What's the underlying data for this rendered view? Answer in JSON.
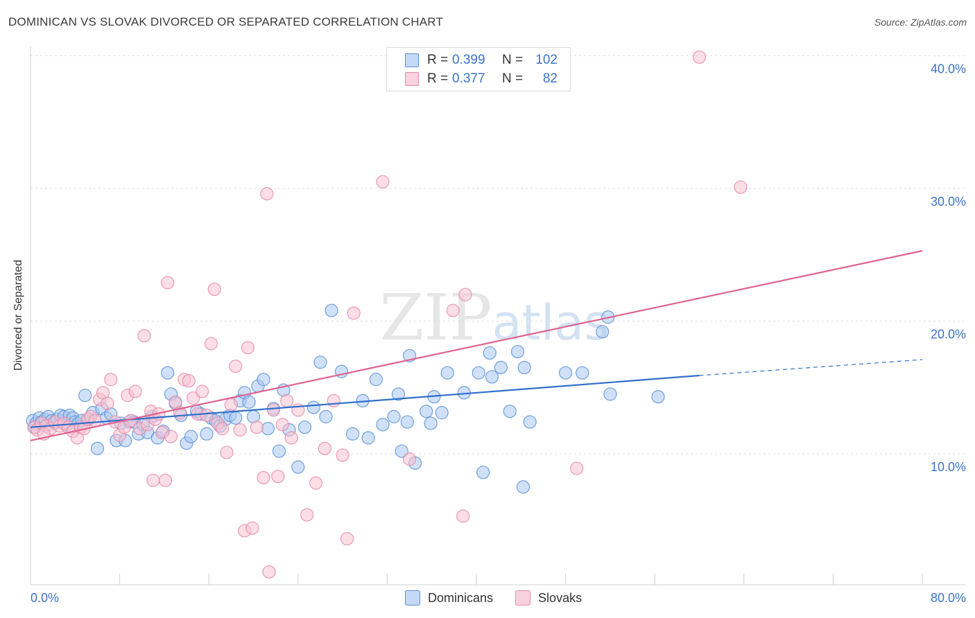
{
  "header": {
    "title": "DOMINICAN VS SLOVAK DIVORCED OR SEPARATED CORRELATION CHART",
    "source": "Source: ZipAtlas.com"
  },
  "watermark": "ZIPatlas",
  "legend_top": {
    "rows": [
      {
        "r_label": "R =",
        "r_value": "0.399",
        "n_label": "N =",
        "n_value": "102"
      },
      {
        "r_label": "R =",
        "r_value": "0.377",
        "n_label": "N =",
        "n_value": "82"
      }
    ]
  },
  "legend_bottom": {
    "items": [
      "Dominicans",
      "Slovaks"
    ]
  },
  "colors": {
    "dominicans_fill": "#a9c8f0",
    "dominicans_stroke": "#5b8fd6",
    "dominicans_line": "#2f6fcc",
    "slovaks_fill": "#f7c2d2",
    "slovaks_stroke": "#e589a8",
    "slovaks_line": "#e0628e",
    "tick_label": "#3b73c9"
  },
  "chart_data": {
    "type": "scatter",
    "title": "DOMINICAN VS SLOVAK DIVORCED OR SEPARATED CORRELATION CHART",
    "xlabel": "",
    "ylabel": "Divorced or Separated",
    "xlim": [
      0,
      80
    ],
    "ylim": [
      0,
      40
    ],
    "x_tick_labels": [
      "0.0%",
      "80.0%"
    ],
    "y_ticks": [
      10,
      20,
      30,
      40
    ],
    "y_tick_labels": [
      "10.0%",
      "20.0%",
      "30.0%",
      "40.0%"
    ],
    "grid": true,
    "legend_position": "top-center",
    "series": [
      {
        "name": "Dominicans",
        "r": 0.399,
        "n": 102,
        "trend": {
          "x0": 0,
          "y0": 12.0,
          "x1": 60,
          "y1": 15.9,
          "dash_x1": 80,
          "dash_y1": 17.1
        },
        "points": [
          [
            0.2,
            12.5
          ],
          [
            0.5,
            12.3
          ],
          [
            0.8,
            12.7
          ],
          [
            1.0,
            12.4
          ],
          [
            1.3,
            12.6
          ],
          [
            1.6,
            12.8
          ],
          [
            1.9,
            12.5
          ],
          [
            2.1,
            12.3
          ],
          [
            2.4,
            12.6
          ],
          [
            2.7,
            12.9
          ],
          [
            3.0,
            12.8
          ],
          [
            3.2,
            12.2
          ],
          [
            3.5,
            12.9
          ],
          [
            3.8,
            12.7
          ],
          [
            4.0,
            12.4
          ],
          [
            4.3,
            12.3
          ],
          [
            4.6,
            12.5
          ],
          [
            4.9,
            14.4
          ],
          [
            5.2,
            12.6
          ],
          [
            5.6,
            13.1
          ],
          [
            6.0,
            10.4
          ],
          [
            6.4,
            13.4
          ],
          [
            6.8,
            12.7
          ],
          [
            7.2,
            13.0
          ],
          [
            7.7,
            11.0
          ],
          [
            8.1,
            12.3
          ],
          [
            8.5,
            11.0
          ],
          [
            8.9,
            12.4
          ],
          [
            9.3,
            12.4
          ],
          [
            9.7,
            11.5
          ],
          [
            10.1,
            12.2
          ],
          [
            10.5,
            11.6
          ],
          [
            10.9,
            12.8
          ],
          [
            11.4,
            11.2
          ],
          [
            11.9,
            11.7
          ],
          [
            12.3,
            16.1
          ],
          [
            12.6,
            14.5
          ],
          [
            13.0,
            13.8
          ],
          [
            13.5,
            12.9
          ],
          [
            14.0,
            10.8
          ],
          [
            14.4,
            11.3
          ],
          [
            14.9,
            13.2
          ],
          [
            15.3,
            13.0
          ],
          [
            15.8,
            11.5
          ],
          [
            16.2,
            12.7
          ],
          [
            16.6,
            12.5
          ],
          [
            17.0,
            12.1
          ],
          [
            17.5,
            12.6
          ],
          [
            17.9,
            12.9
          ],
          [
            18.4,
            12.7
          ],
          [
            18.8,
            14.0
          ],
          [
            19.2,
            14.6
          ],
          [
            19.6,
            13.9
          ],
          [
            20.0,
            12.8
          ],
          [
            20.4,
            15.1
          ],
          [
            20.9,
            15.6
          ],
          [
            21.3,
            11.9
          ],
          [
            21.8,
            13.4
          ],
          [
            22.3,
            10.2
          ],
          [
            22.7,
            14.8
          ],
          [
            23.2,
            11.8
          ],
          [
            24.0,
            9.0
          ],
          [
            24.6,
            12.0
          ],
          [
            25.4,
            13.5
          ],
          [
            26.0,
            16.9
          ],
          [
            26.5,
            12.8
          ],
          [
            27.0,
            20.8
          ],
          [
            27.9,
            16.2
          ],
          [
            28.9,
            11.5
          ],
          [
            29.8,
            14.0
          ],
          [
            30.3,
            11.2
          ],
          [
            31.0,
            15.6
          ],
          [
            31.6,
            12.2
          ],
          [
            32.6,
            12.8
          ],
          [
            33.0,
            14.5
          ],
          [
            33.3,
            10.2
          ],
          [
            33.8,
            12.4
          ],
          [
            34.0,
            17.4
          ],
          [
            34.5,
            9.3
          ],
          [
            35.5,
            13.2
          ],
          [
            35.9,
            12.3
          ],
          [
            36.2,
            14.3
          ],
          [
            36.9,
            13.1
          ],
          [
            37.4,
            16.1
          ],
          [
            38.9,
            14.6
          ],
          [
            40.2,
            16.1
          ],
          [
            40.6,
            8.6
          ],
          [
            41.2,
            17.6
          ],
          [
            41.4,
            15.8
          ],
          [
            42.2,
            16.5
          ],
          [
            43.0,
            13.2
          ],
          [
            43.7,
            17.7
          ],
          [
            44.2,
            7.5
          ],
          [
            44.3,
            16.5
          ],
          [
            44.8,
            12.4
          ],
          [
            48.0,
            16.1
          ],
          [
            49.5,
            16.1
          ],
          [
            51.3,
            19.2
          ],
          [
            51.8,
            20.3
          ],
          [
            52.0,
            14.5
          ],
          [
            56.3,
            14.3
          ],
          [
            0.4,
            12.0
          ]
        ]
      },
      {
        "name": "Slovaks",
        "r": 0.377,
        "n": 82,
        "trend": {
          "x0": 0,
          "y0": 11.0,
          "x1": 80,
          "y1": 25.3
        },
        "points": [
          [
            0.3,
            12.0
          ],
          [
            0.6,
            11.8
          ],
          [
            1.0,
            12.3
          ],
          [
            1.4,
            12.1
          ],
          [
            1.8,
            11.9
          ],
          [
            2.2,
            12.4
          ],
          [
            2.6,
            12.1
          ],
          [
            3.0,
            12.3
          ],
          [
            3.4,
            12.0
          ],
          [
            3.8,
            11.7
          ],
          [
            4.2,
            11.2
          ],
          [
            4.5,
            12.0
          ],
          [
            4.8,
            11.9
          ],
          [
            5.1,
            12.6
          ],
          [
            5.4,
            12.8
          ],
          [
            5.8,
            12.5
          ],
          [
            6.2,
            14.1
          ],
          [
            6.5,
            14.6
          ],
          [
            6.9,
            13.8
          ],
          [
            7.2,
            15.6
          ],
          [
            7.6,
            12.4
          ],
          [
            8.0,
            11.4
          ],
          [
            8.4,
            12.0
          ],
          [
            8.7,
            14.4
          ],
          [
            9.0,
            12.5
          ],
          [
            9.4,
            14.7
          ],
          [
            9.8,
            11.9
          ],
          [
            10.2,
            18.9
          ],
          [
            10.5,
            12.2
          ],
          [
            10.8,
            13.2
          ],
          [
            11.0,
            8.0
          ],
          [
            11.2,
            12.6
          ],
          [
            11.5,
            13.0
          ],
          [
            11.8,
            11.6
          ],
          [
            12.1,
            8.0
          ],
          [
            12.3,
            22.9
          ],
          [
            12.6,
            11.3
          ],
          [
            13.0,
            13.9
          ],
          [
            13.4,
            13.1
          ],
          [
            13.8,
            15.6
          ],
          [
            14.2,
            15.5
          ],
          [
            14.6,
            14.2
          ],
          [
            15.0,
            13.0
          ],
          [
            15.4,
            14.7
          ],
          [
            15.8,
            12.9
          ],
          [
            16.2,
            18.3
          ],
          [
            16.5,
            22.4
          ],
          [
            16.8,
            12.3
          ],
          [
            17.2,
            11.9
          ],
          [
            17.6,
            10.1
          ],
          [
            18.0,
            13.7
          ],
          [
            18.4,
            16.6
          ],
          [
            18.8,
            11.8
          ],
          [
            19.2,
            4.2
          ],
          [
            19.5,
            18.0
          ],
          [
            19.9,
            4.4
          ],
          [
            20.3,
            12.0
          ],
          [
            20.9,
            8.2
          ],
          [
            21.2,
            29.6
          ],
          [
            21.4,
            1.1
          ],
          [
            21.8,
            13.3
          ],
          [
            22.2,
            8.3
          ],
          [
            22.6,
            12.2
          ],
          [
            23.0,
            14.0
          ],
          [
            23.4,
            11.2
          ],
          [
            24.0,
            13.3
          ],
          [
            24.8,
            5.4
          ],
          [
            25.6,
            7.8
          ],
          [
            26.4,
            10.4
          ],
          [
            27.2,
            14.0
          ],
          [
            28.0,
            9.9
          ],
          [
            28.4,
            3.6
          ],
          [
            29.0,
            20.6
          ],
          [
            31.6,
            30.5
          ],
          [
            34.0,
            9.6
          ],
          [
            37.9,
            20.8
          ],
          [
            39.0,
            22.0
          ],
          [
            38.8,
            5.3
          ],
          [
            49.0,
            8.9
          ],
          [
            60.0,
            39.9
          ],
          [
            63.7,
            30.1
          ],
          [
            1.2,
            11.5
          ]
        ]
      }
    ]
  }
}
